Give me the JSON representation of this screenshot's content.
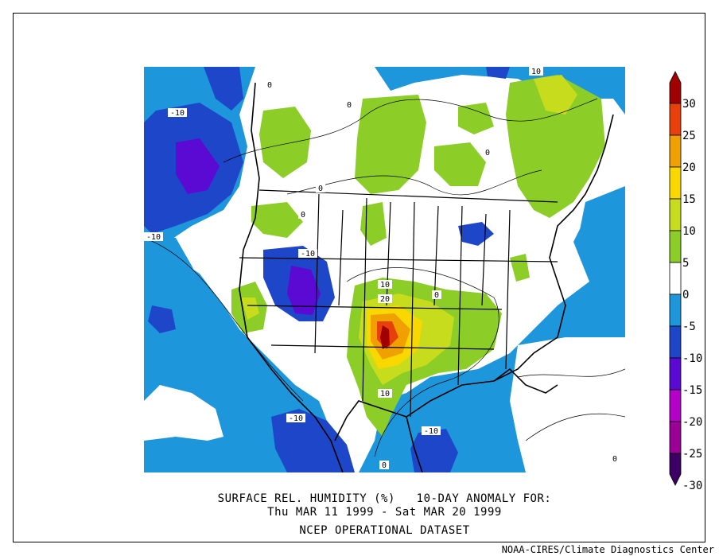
{
  "title": {
    "line1": "SURFACE REL. HUMIDITY (%)   10-DAY ANOMALY FOR:",
    "line2": "Thu MAR 11 1999 - Sat MAR 20 1999",
    "line3": "NCEP OPERATIONAL DATASET"
  },
  "footer": "NOAA-CIRES/Climate Diagnostics Center",
  "colorbar": {
    "labels": [
      "30",
      "25",
      "20",
      "15",
      "10",
      "5",
      "0",
      "-5",
      "-10",
      "-15",
      "-20",
      "-25",
      "-30"
    ],
    "colors": [
      "#a00000",
      "#e8400a",
      "#f0a000",
      "#f8d800",
      "#c8dc1e",
      "#8ccd28",
      "#ffffff",
      "#1e96dc",
      "#1e46c8",
      "#5a0ad2",
      "#b400c8",
      "#9a0096",
      "#3c0064"
    ]
  },
  "contour_labels": [
    "10",
    "-10",
    "0",
    "0",
    "-10",
    "0",
    "0",
    "0",
    "0",
    "-10",
    "10",
    "20",
    "10",
    "-10",
    "-10",
    "0",
    "0"
  ]
}
